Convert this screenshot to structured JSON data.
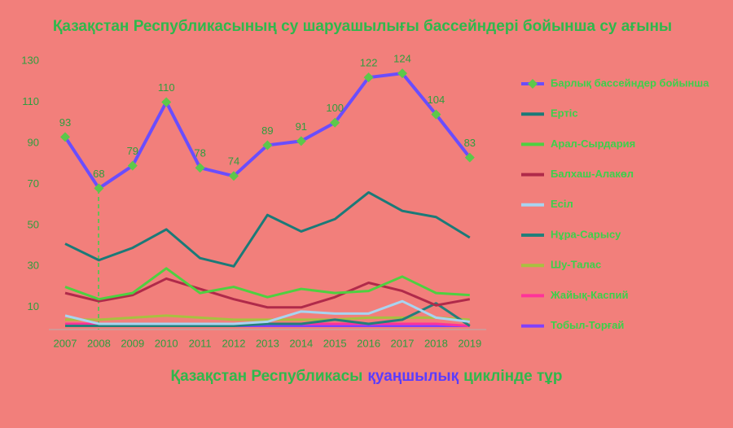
{
  "chart_data": {
    "type": "line",
    "title": "Қазақстан Республикасының су шаруашылығы бассейндері бойынша су ағыны",
    "footer": [
      "Қазақстан Республикасы",
      "қуаңшылық",
      "циклінде тұр"
    ],
    "categories": [
      "2007",
      "2008",
      "2009",
      "2010",
      "2011",
      "2012",
      "2013",
      "2014",
      "2015",
      "2016",
      "2017",
      "2018",
      "2019"
    ],
    "ylim": [
      0,
      130
    ],
    "yticks": [
      10,
      30,
      50,
      70,
      90,
      110,
      130
    ],
    "grid": false,
    "legend": "right",
    "series": [
      {
        "name": "Барлық бассейндер бойынша",
        "color": "#6a4dff",
        "marker_color": "#5cc84a",
        "show_values": true,
        "values": [
          93,
          68,
          79,
          110,
          78,
          74,
          89,
          91,
          100,
          122,
          124,
          104,
          83
        ]
      },
      {
        "name": "Ертіс",
        "color": "#1b7a78",
        "values": [
          41,
          33,
          39,
          48,
          34,
          30,
          55,
          47,
          53,
          66,
          57,
          54,
          44
        ]
      },
      {
        "name": "Арал-Сырдария",
        "color": "#4ed040",
        "values": [
          20,
          14,
          17,
          29,
          17,
          20,
          15,
          19,
          17,
          18,
          25,
          17,
          16
        ]
      },
      {
        "name": "Балхаш-Алакөл",
        "color": "#b02a4a",
        "values": [
          17,
          13,
          16,
          24,
          19,
          14,
          10,
          10,
          15,
          22,
          18,
          11,
          14
        ]
      },
      {
        "name": "Есіл",
        "color": "#a8d4f0",
        "values": [
          6,
          2,
          2,
          2,
          2,
          2,
          3,
          8,
          7,
          7,
          13,
          5,
          3
        ]
      },
      {
        "name": "Нұра-Сарысу",
        "color": "#237f7a",
        "values": [
          1,
          1,
          1,
          1,
          1,
          1,
          2,
          2,
          4,
          2,
          4,
          12,
          1
        ]
      },
      {
        "name": "Шу-Талас",
        "color": "#a8c040",
        "values": [
          4,
          4,
          5,
          6,
          5,
          4,
          4,
          4,
          4,
          5,
          5,
          5,
          4
        ]
      },
      {
        "name": "Жайық-Каспий",
        "color": "#ff3399",
        "values": [
          2,
          2,
          2,
          2,
          2,
          2,
          2,
          2,
          2,
          2,
          2,
          2,
          1
        ]
      },
      {
        "name": "Тобыл-Торғай",
        "color": "#8040ff",
        "values": [
          1,
          1,
          1,
          1,
          1,
          1,
          1,
          1,
          1,
          1,
          1,
          1,
          1
        ]
      }
    ]
  }
}
